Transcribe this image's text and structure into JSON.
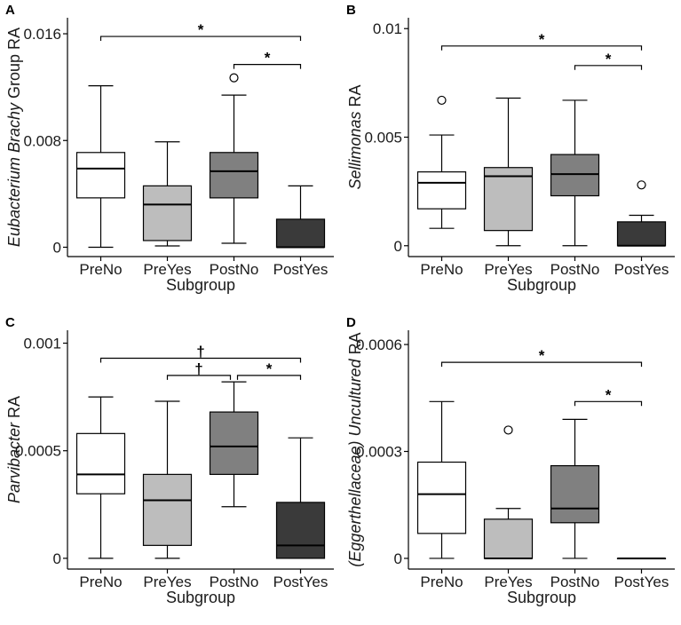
{
  "chart_data": [
    {
      "type": "box",
      "panel_label": "A",
      "ylabel_italic": "Eubacterium Brachy",
      "ylabel_rest": " Group RA",
      "xlabel": "Subgroup",
      "categories": [
        "PreNo",
        "PreYes",
        "PostNo",
        "PostYes"
      ],
      "fills": [
        "#ffffff",
        "#bdbdbd",
        "#808080",
        "#3a3a3a"
      ],
      "yticks": [
        0,
        0.008,
        0.016
      ],
      "ytick_labels": [
        "0",
        "0.008",
        "0.016"
      ],
      "ylim": [
        -0.0007,
        0.0172
      ],
      "boxes": [
        {
          "lo": 0.0,
          "q1": 0.0037,
          "med": 0.0059,
          "q3": 0.0071,
          "hi": 0.0121,
          "outliers": []
        },
        {
          "lo": 0.0001,
          "q1": 0.0005,
          "med": 0.0032,
          "q3": 0.0046,
          "hi": 0.0079,
          "outliers": []
        },
        {
          "lo": 0.0003,
          "q1": 0.0037,
          "med": 0.0057,
          "q3": 0.0071,
          "hi": 0.0114,
          "outliers": [
            0.0127
          ]
        },
        {
          "lo": 0.0,
          "q1": 0.0,
          "med": 0.0,
          "q3": 0.0021,
          "hi": 0.0046,
          "outliers": []
        }
      ],
      "brackets": [
        {
          "from": 0,
          "to": 3,
          "y": 0.0158,
          "label": "*"
        },
        {
          "from": 2,
          "to": 3,
          "y": 0.0137,
          "label": "*"
        }
      ]
    },
    {
      "type": "box",
      "panel_label": "B",
      "ylabel_italic": "Sellimonas",
      "ylabel_rest": " RA",
      "xlabel": "Subgroup",
      "categories": [
        "PreNo",
        "PreYes",
        "PostNo",
        "PostYes"
      ],
      "fills": [
        "#ffffff",
        "#bdbdbd",
        "#808080",
        "#3a3a3a"
      ],
      "yticks": [
        0,
        0.005,
        0.01
      ],
      "ytick_labels": [
        "0",
        "0.005",
        "0.01"
      ],
      "ylim": [
        -0.0005,
        0.0105
      ],
      "boxes": [
        {
          "lo": 0.0008,
          "q1": 0.0017,
          "med": 0.0029,
          "q3": 0.0034,
          "hi": 0.0051,
          "outliers": [
            0.0067
          ]
        },
        {
          "lo": 0.0,
          "q1": 0.0007,
          "med": 0.0032,
          "q3": 0.0036,
          "hi": 0.0068,
          "outliers": []
        },
        {
          "lo": 0.0,
          "q1": 0.0023,
          "med": 0.0033,
          "q3": 0.0042,
          "hi": 0.0067,
          "outliers": []
        },
        {
          "lo": 0.0,
          "q1": 0.0,
          "med": 0.0,
          "q3": 0.0011,
          "hi": 0.0014,
          "outliers": [
            0.0028
          ]
        }
      ],
      "brackets": [
        {
          "from": 0,
          "to": 3,
          "y": 0.0092,
          "label": "*"
        },
        {
          "from": 2,
          "to": 3,
          "y": 0.0083,
          "label": "*"
        }
      ]
    },
    {
      "type": "box",
      "panel_label": "C",
      "ylabel_italic": "Parvibacter",
      "ylabel_rest": " RA",
      "xlabel": "Subgroup",
      "categories": [
        "PreNo",
        "PreYes",
        "PostNo",
        "PostYes"
      ],
      "fills": [
        "#ffffff",
        "#bdbdbd",
        "#808080",
        "#3a3a3a"
      ],
      "yticks": [
        0,
        0.0005,
        0.001
      ],
      "ytick_labels": [
        "0",
        "0.0005",
        "0.001"
      ],
      "ylim": [
        -5e-05,
        0.00106
      ],
      "boxes": [
        {
          "lo": 0.0,
          "q1": 0.0003,
          "med": 0.00039,
          "q3": 0.00058,
          "hi": 0.00075,
          "outliers": []
        },
        {
          "lo": 0.0,
          "q1": 6e-05,
          "med": 0.00027,
          "q3": 0.00039,
          "hi": 0.00073,
          "outliers": []
        },
        {
          "lo": 0.00024,
          "q1": 0.00039,
          "med": 0.00052,
          "q3": 0.00068,
          "hi": 0.00082,
          "outliers": []
        },
        {
          "lo": 0.0,
          "q1": 0.0,
          "med": 6e-05,
          "q3": 0.00026,
          "hi": 0.00056,
          "outliers": []
        }
      ],
      "brackets": [
        {
          "from": 0,
          "to": 3,
          "y": 0.00093,
          "label": "†"
        },
        {
          "from": 1,
          "to": 2,
          "y": 0.00085,
          "label": "†"
        },
        {
          "from": 2,
          "to": 3,
          "y": 0.00085,
          "label": "*"
        }
      ]
    },
    {
      "type": "box",
      "panel_label": "D",
      "ylabel_italic": "(Eggerthellaceae) Uncultured",
      "ylabel_rest": " RA",
      "xlabel": "Subgroup",
      "categories": [
        "PreNo",
        "PreYes",
        "PostNo",
        "PostYes"
      ],
      "fills": [
        "#ffffff",
        "#bdbdbd",
        "#808080",
        "#3a3a3a"
      ],
      "yticks": [
        0,
        0.0003,
        0.0006
      ],
      "ytick_labels": [
        "0",
        "0.0003",
        "0.0006"
      ],
      "ylim": [
        -3e-05,
        0.00064
      ],
      "boxes": [
        {
          "lo": 0.0,
          "q1": 7e-05,
          "med": 0.00018,
          "q3": 0.00027,
          "hi": 0.00044,
          "outliers": []
        },
        {
          "lo": 0.0,
          "q1": 0.0,
          "med": 0.0,
          "q3": 0.00011,
          "hi": 0.00014,
          "outliers": [
            0.00036
          ]
        },
        {
          "lo": 0.0,
          "q1": 0.0001,
          "med": 0.00014,
          "q3": 0.00026,
          "hi": 0.00039,
          "outliers": []
        },
        {
          "lo": 0.0,
          "q1": 0.0,
          "med": 0.0,
          "q3": 0.0,
          "hi": 0.0,
          "outliers": []
        }
      ],
      "brackets": [
        {
          "from": 0,
          "to": 3,
          "y": 0.00055,
          "label": "*"
        },
        {
          "from": 2,
          "to": 3,
          "y": 0.00044,
          "label": "*"
        }
      ]
    }
  ]
}
